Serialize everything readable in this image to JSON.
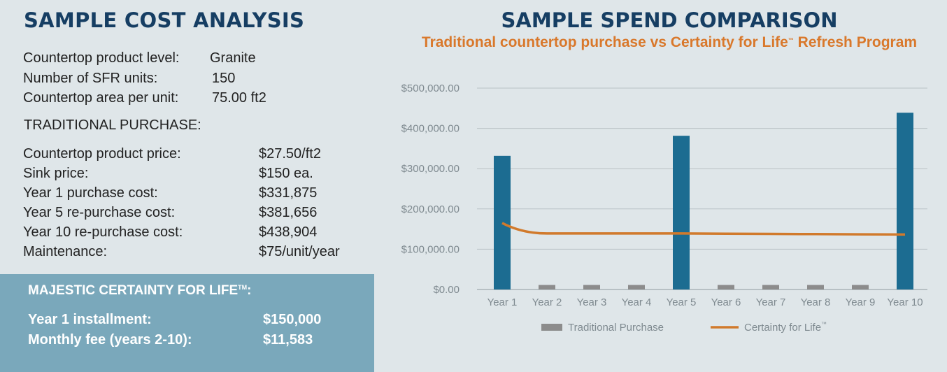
{
  "cost_analysis": {
    "title": "SAMPLE COST ANALYSIS",
    "specs": [
      {
        "label": "Countertop product level:",
        "value": "Granite"
      },
      {
        "label": "Number of SFR units:",
        "value": "150"
      },
      {
        "label": "Countertop area per unit:",
        "value": "75.00 ft2"
      }
    ],
    "traditional": {
      "heading": "TRADITIONAL PURCHASE:",
      "rows": [
        {
          "label": "Countertop product price:",
          "value": "$27.50/ft2"
        },
        {
          "label": "Sink price:",
          "value": "$150 ea."
        },
        {
          "label": "Year 1 purchase cost:",
          "value": "$331,875"
        },
        {
          "label": "Year 5 re-purchase cost:",
          "value": "$381,656"
        },
        {
          "label": "Year 10 re-purchase cost:",
          "value": "$438,904"
        },
        {
          "label": "Maintenance:",
          "value": "$75/unit/year"
        }
      ]
    },
    "majestic": {
      "title": "MAJESTIC CERTAINTY FOR LIFE",
      "title_mark": "TM",
      "title_suffix": ":",
      "rows": [
        {
          "label": "Year 1 installment:",
          "value": "$150,000"
        },
        {
          "label": "Monthly fee (years 2-10):",
          "value": "$11,583"
        }
      ]
    }
  },
  "chart": {
    "title": "SAMPLE SPEND COMPARISON",
    "subtitle": "Traditional countertop purchase vs Certainty for Life",
    "subtitle_mark": "™",
    "subtitle_suffix": " Refresh Program"
  },
  "chart_data": {
    "type": "bar",
    "categories": [
      "Year 1",
      "Year 2",
      "Year 3",
      "Year 4",
      "Year 5",
      "Year 6",
      "Year 7",
      "Year 8",
      "Year 9",
      "Year 10"
    ],
    "series": [
      {
        "name": "Traditional Purchase",
        "type": "bar",
        "color": "#8c8c8c",
        "highlight_color": "#1c6c91",
        "values": [
          331875,
          11250,
          11250,
          11250,
          381656,
          11250,
          11250,
          11250,
          11250,
          438904
        ]
      },
      {
        "name": "Certainty for Life",
        "name_mark": "™",
        "type": "line",
        "color": "#d17a2c",
        "values": [
          165000,
          139000,
          139000,
          139000,
          139000,
          138500,
          138000,
          137500,
          137000,
          136500
        ]
      }
    ],
    "y_ticks": [
      "$0.00",
      "$100,000.00",
      "$200,000.00",
      "$300,000.00",
      "$400,000.00",
      "$500,000.00"
    ],
    "ylim": [
      0,
      500000
    ],
    "grid": true,
    "legend_position": "bottom"
  }
}
